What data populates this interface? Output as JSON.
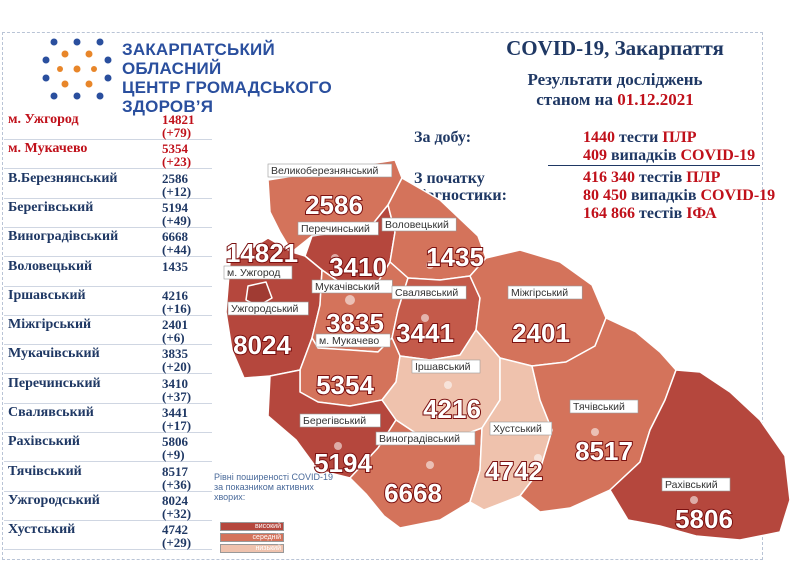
{
  "header": {
    "org_line1": "ЗАКАРПАТСЬКИЙ ОБЛАСНИЙ",
    "org_line2": "ЦЕНТР ГРОМАДСЬКОГО",
    "org_line3": "ЗДОРОВ’Я",
    "title": "COVID-19, Закарпаття",
    "subtitle_line1": "Результати досліджень",
    "subtitle_line2_prefix": "станом на ",
    "date": "01.12.2021"
  },
  "stats": {
    "daily_label": "За добу:",
    "since_label_1": "З початку",
    "since_label_2": "діагностики:",
    "daily": [
      {
        "num": "1440",
        "text": " тести ",
        "red": "ПЛР"
      },
      {
        "num": "409",
        "text": " випадків ",
        "red": "COVID-19"
      }
    ],
    "total": [
      {
        "num": "416 340",
        "text": " тестів ",
        "red": "ПЛР"
      },
      {
        "num": "80 450",
        "text": " випадків ",
        "red": "COVID-19"
      },
      {
        "num": "164 866",
        "text": " тестів ",
        "red": "ІФА"
      }
    ]
  },
  "table": [
    {
      "name": "м. Ужгород",
      "total": "14821",
      "inc": "(+79)",
      "red": true
    },
    {
      "name": "м. Мукачево",
      "total": "5354",
      "inc": "(+23)",
      "red": true
    },
    {
      "name": "В.Березнянський",
      "total": "2586",
      "inc": "(+12)",
      "red": false
    },
    {
      "name": "Берегівський",
      "total": "5194",
      "inc": "(+49)",
      "red": false
    },
    {
      "name": "Виноградівський",
      "total": "6668",
      "inc": "(+44)",
      "red": false
    },
    {
      "name": "Воловецький",
      "total": "1435",
      "inc": "",
      "red": false
    },
    {
      "name": "Іршавський",
      "total": "4216",
      "inc": "(+16)",
      "red": false
    },
    {
      "name": "Міжгірський",
      "total": "2401",
      "inc": "(+6)",
      "red": false
    },
    {
      "name": "Мукачівський",
      "total": "3835",
      "inc": "(+20)",
      "red": false
    },
    {
      "name": "Перечинський",
      "total": "3410",
      "inc": "(+37)",
      "red": false
    },
    {
      "name": "Свалявський",
      "total": "3441",
      "inc": "(+17)",
      "red": false
    },
    {
      "name": "Рахівський",
      "total": "5806",
      "inc": "(+9)",
      "red": false
    },
    {
      "name": "Тячівський",
      "total": "8517",
      "inc": "(+36)",
      "red": false
    },
    {
      "name": "Ужгородський",
      "total": "8024",
      "inc": "(+32)",
      "red": false
    },
    {
      "name": "Хустський",
      "total": "4742",
      "inc": "(+29)",
      "red": false
    }
  ],
  "legend": {
    "title": "Рівні поширеності COVID-19 за показником активних хворих:",
    "high": "високий",
    "medium": "середній",
    "low": "низький"
  },
  "colors": {
    "high": "#b5473d",
    "medium": "#d4735b",
    "low": "#efc2ad",
    "accent_red": "#c0101a",
    "navy": "#1f3864",
    "brand_blue": "#2a4f9e",
    "brand_orange": "#e8862a"
  },
  "map": {
    "districts": [
      {
        "id": "uzhhorod-city",
        "label": "м. Ужгород",
        "value": "14821"
      },
      {
        "id": "v-bereznyi",
        "label": "Великоберезнянський",
        "value": "2586"
      },
      {
        "id": "perechyn",
        "label": "Перечинський",
        "value": "3410"
      },
      {
        "id": "volovets",
        "label": "Воловецький",
        "value": "1435"
      },
      {
        "id": "mukachivskyi",
        "label": "Мукачівський",
        "value": "3835"
      },
      {
        "id": "svaliava",
        "label": "Свалявський",
        "value": "3441"
      },
      {
        "id": "mizhhiria",
        "label": "Міжгірський",
        "value": "2401"
      },
      {
        "id": "uzhhorodskyi",
        "label": "Ужгородський",
        "value": "8024"
      },
      {
        "id": "mukachevo-city",
        "label": "м. Мукачево",
        "value": "5354"
      },
      {
        "id": "irshava",
        "label": "Іршавський",
        "value": "4216"
      },
      {
        "id": "berehove",
        "label": "Берегівський",
        "value": "5194"
      },
      {
        "id": "vynohradiv",
        "label": "Виноградівський",
        "value": "6668"
      },
      {
        "id": "khust",
        "label": "Хустський",
        "value": "4742"
      },
      {
        "id": "tiachiv",
        "label": "Тячівський",
        "value": "8517"
      },
      {
        "id": "rakhiv",
        "label": "Рахівський",
        "value": "5806"
      }
    ]
  }
}
